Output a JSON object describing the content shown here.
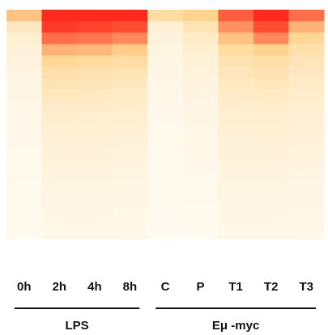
{
  "chart_data": {
    "type": "heatmap",
    "categories": [
      "0h",
      "2h",
      "4h",
      "8h",
      "C",
      "P",
      "T1",
      "T2",
      "T3"
    ],
    "groups": [
      {
        "name": "LPS",
        "count": 4
      },
      {
        "name": "Eμ -myc",
        "count": 5
      }
    ],
    "colormap": [
      "#fffbf2",
      "#ffd48c",
      "#ff2a1c"
    ],
    "values": [
      [
        0.55,
        0.25,
        0.15,
        0.12,
        0.1,
        0.08,
        0.07,
        0.06,
        0.05,
        0.05,
        0.04,
        0.04,
        0.03,
        0.03,
        0.03,
        0.02,
        0.02,
        0.02,
        0.02,
        0.02
      ],
      [
        1,
        0.95,
        0.8,
        0.6,
        0.45,
        0.35,
        0.3,
        0.25,
        0.2,
        0.18,
        0.15,
        0.13,
        0.12,
        0.1,
        0.09,
        0.08,
        0.07,
        0.06,
        0.05,
        0.05
      ],
      [
        1,
        0.93,
        0.78,
        0.58,
        0.42,
        0.33,
        0.28,
        0.23,
        0.2,
        0.17,
        0.15,
        0.13,
        0.11,
        0.1,
        0.09,
        0.08,
        0.07,
        0.06,
        0.05,
        0.05
      ],
      [
        1,
        0.9,
        0.72,
        0.52,
        0.38,
        0.3,
        0.25,
        0.21,
        0.18,
        0.16,
        0.14,
        0.12,
        0.1,
        0.09,
        0.08,
        0.07,
        0.06,
        0.05,
        0.05,
        0.04
      ],
      [
        0.4,
        0.15,
        0.1,
        0.08,
        0.07,
        0.06,
        0.05,
        0.05,
        0.04,
        0.04,
        0.03,
        0.03,
        0.03,
        0.02,
        0.02,
        0.02,
        0.02,
        0.02,
        0.01,
        0.01
      ],
      [
        0.5,
        0.3,
        0.2,
        0.15,
        0.12,
        0.1,
        0.09,
        0.08,
        0.07,
        0.06,
        0.05,
        0.05,
        0.04,
        0.04,
        0.03,
        0.03,
        0.03,
        0.02,
        0.02,
        0.02
      ],
      [
        0.85,
        0.7,
        0.55,
        0.4,
        0.32,
        0.27,
        0.23,
        0.2,
        0.18,
        0.16,
        0.14,
        0.12,
        0.11,
        0.1,
        0.09,
        0.08,
        0.07,
        0.06,
        0.05,
        0.05
      ],
      [
        1,
        0.9,
        0.72,
        0.5,
        0.38,
        0.31,
        0.26,
        0.22,
        0.19,
        0.17,
        0.15,
        0.13,
        0.12,
        0.1,
        0.09,
        0.08,
        0.07,
        0.06,
        0.05,
        0.05
      ],
      [
        0.8,
        0.6,
        0.45,
        0.35,
        0.28,
        0.24,
        0.21,
        0.18,
        0.16,
        0.14,
        0.13,
        0.12,
        0.1,
        0.09,
        0.08,
        0.07,
        0.06,
        0.05,
        0.05,
        0.04
      ]
    ]
  }
}
